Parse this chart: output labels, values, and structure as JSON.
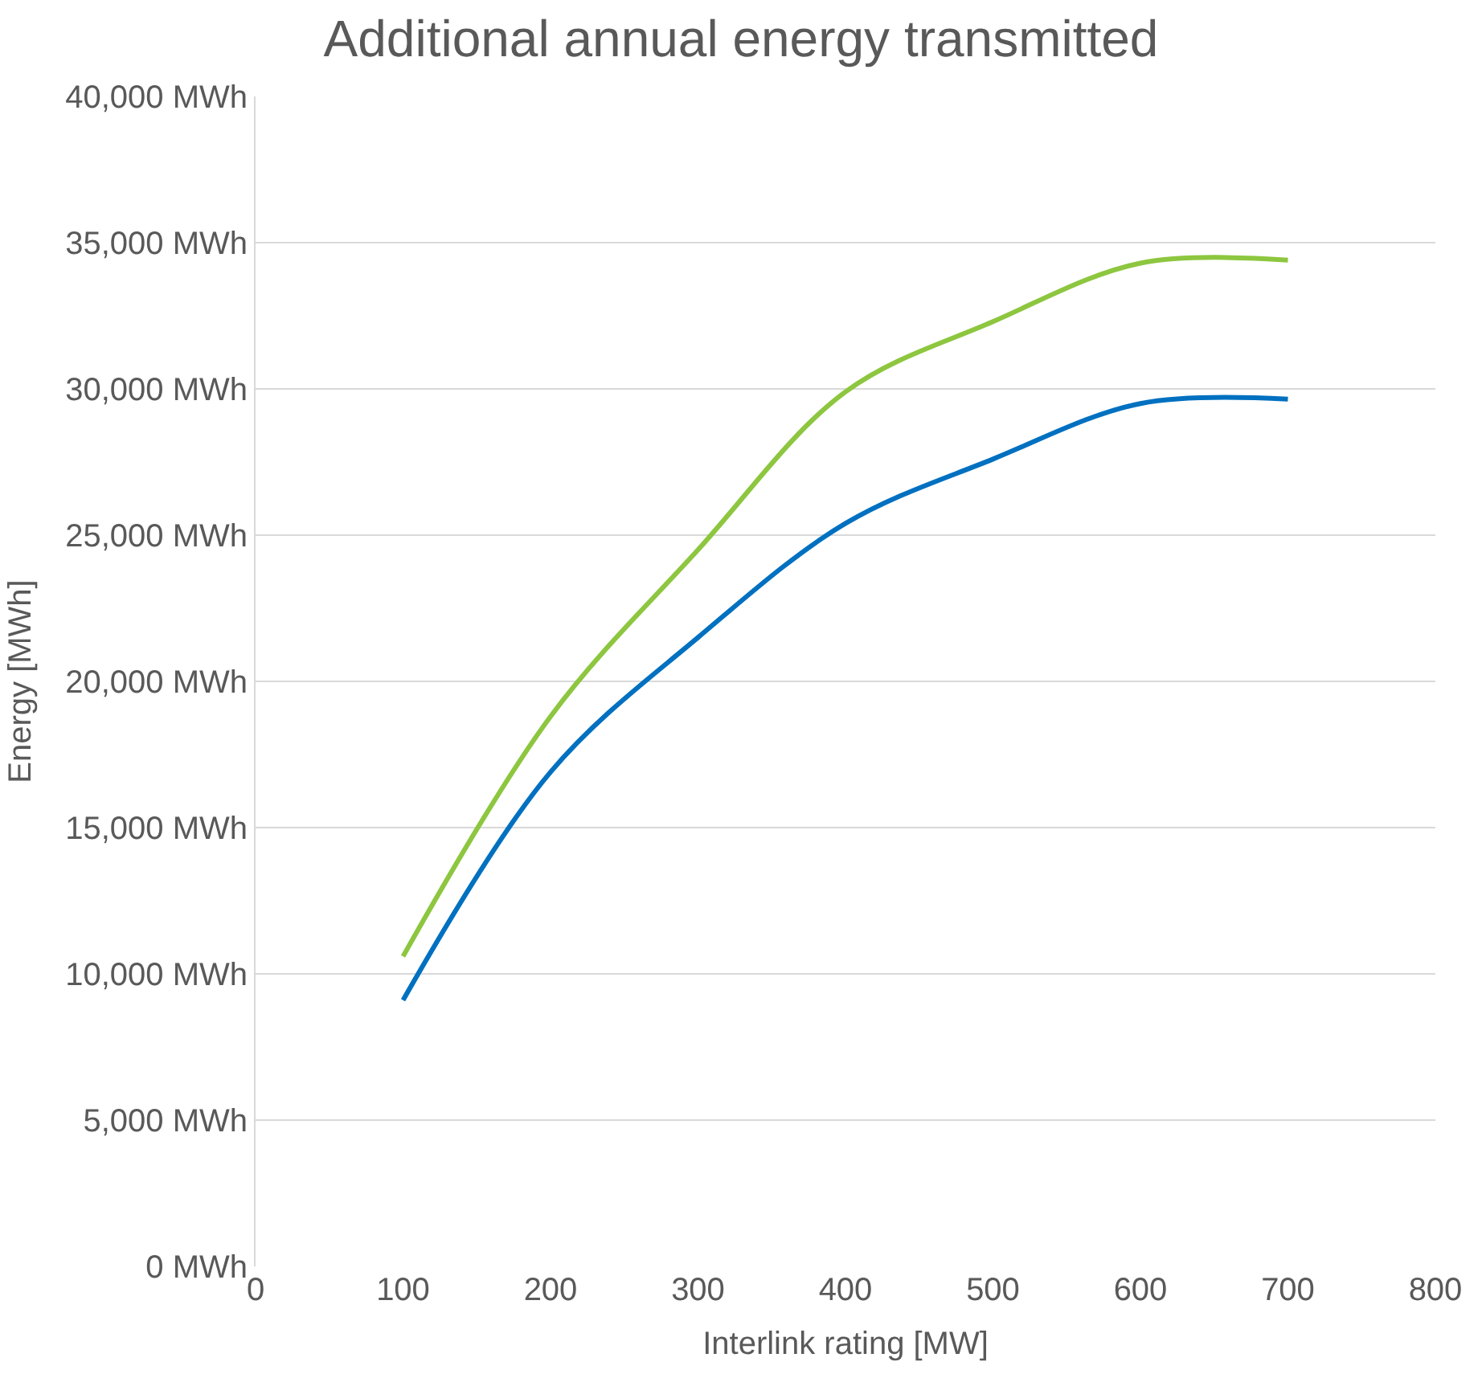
{
  "chart_data": {
    "type": "line",
    "title": "Additional annual energy transmitted",
    "xlabel": "Interlink rating [MW]",
    "ylabel": "Energy [MWh]",
    "x": [
      100,
      200,
      300,
      400,
      500,
      600,
      700
    ],
    "series": [
      {
        "color": "#8dc63f",
        "values": [
          10600,
          18800,
          24500,
          29900,
          32300,
          34300,
          34400
        ]
      },
      {
        "color": "#0070c0",
        "values": [
          9100,
          16900,
          21500,
          25400,
          27600,
          29500,
          29650
        ]
      }
    ],
    "xlim": [
      0,
      800
    ],
    "xticks": [
      0,
      100,
      200,
      300,
      400,
      500,
      600,
      700,
      800
    ],
    "ylim": [
      0,
      40000
    ],
    "yticks": [
      {
        "value": 0,
        "label": "0 MWh"
      },
      {
        "value": 5000,
        "label": "5,000 MWh"
      },
      {
        "value": 10000,
        "label": "10,000 MWh"
      },
      {
        "value": 15000,
        "label": "15,000 MWh"
      },
      {
        "value": 20000,
        "label": "20,000 MWh"
      },
      {
        "value": 25000,
        "label": "25,000 MWh"
      },
      {
        "value": 30000,
        "label": "30,000 MWh"
      },
      {
        "value": 35000,
        "label": "35,000 MWh"
      },
      {
        "value": 40000,
        "label": "40,000 MWh"
      }
    ],
    "grid": "y"
  }
}
